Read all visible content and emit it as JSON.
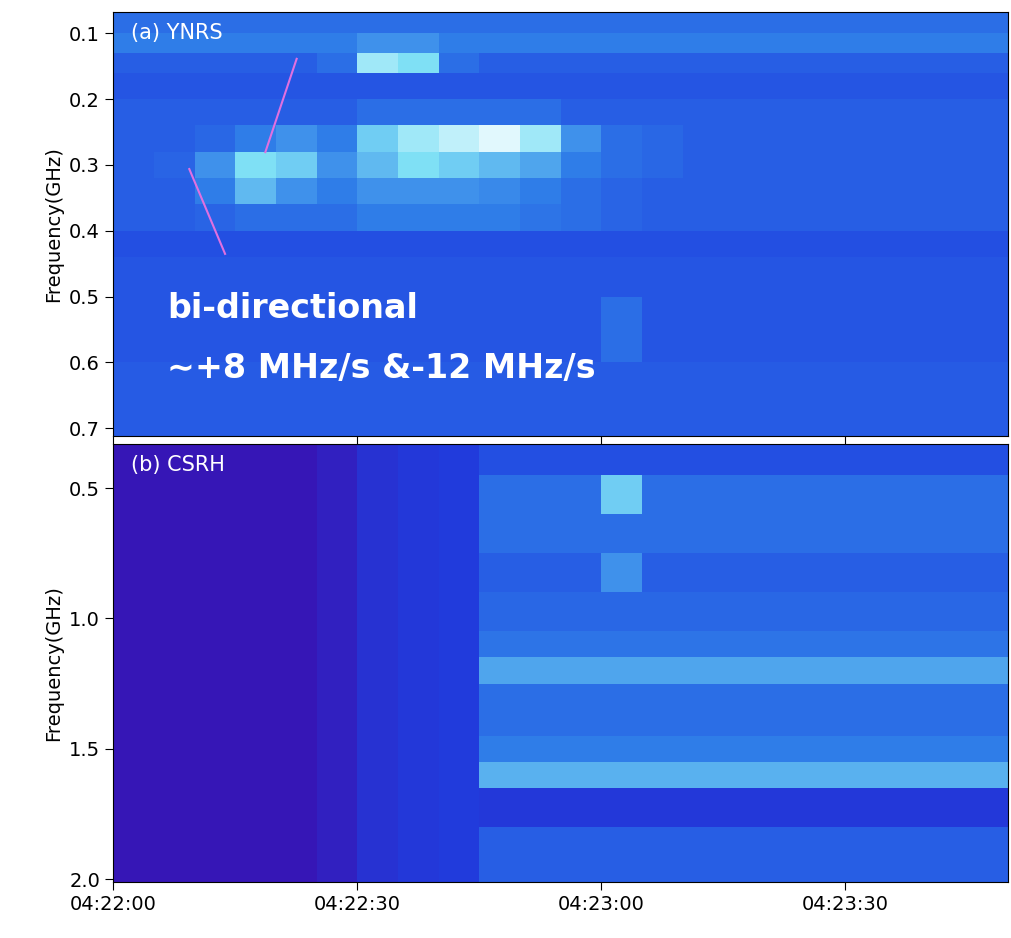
{
  "chart_data": [
    {
      "type": "heatmap",
      "label": "(a) YNRS",
      "ylabel": "Frequency(GHz)",
      "xlim": [
        0,
        110
      ],
      "ylim": [
        0.712,
        0.068
      ],
      "xticks": [
        {
          "value": 0,
          "label": "04:22:00"
        },
        {
          "value": 30,
          "label": "04:22:30"
        },
        {
          "value": 60,
          "label": "04:23:00"
        },
        {
          "value": 90,
          "label": "04:23:30"
        }
      ],
      "yticks": [
        0.1,
        0.2,
        0.3,
        0.4,
        0.5,
        0.6,
        0.7
      ],
      "tick_labels": "y",
      "annotations": [
        "bi-directional",
        "∼+8 MHz/s &-12 MHz/s"
      ],
      "x_edges": [
        0,
        5,
        10,
        15,
        20,
        25,
        30,
        35,
        40,
        45,
        50,
        55,
        60,
        65,
        70,
        75,
        80,
        85,
        90,
        95,
        100,
        105,
        110
      ],
      "y_edges": [
        0.068,
        0.1,
        0.13,
        0.16,
        0.2,
        0.24,
        0.28,
        0.32,
        0.36,
        0.4,
        0.44,
        0.5,
        0.6,
        0.712
      ],
      "clim": [
        0,
        1
      ],
      "cells": [
        [
          0.5,
          0.5,
          0.5,
          0.5,
          0.5,
          0.5,
          0.5,
          0.5,
          0.5,
          0.5,
          0.5,
          0.5,
          0.5,
          0.5,
          0.5,
          0.5,
          0.5,
          0.5,
          0.5,
          0.5,
          0.5,
          0.5
        ],
        [
          0.55,
          0.55,
          0.55,
          0.55,
          0.55,
          0.55,
          0.6,
          0.6,
          0.55,
          0.55,
          0.55,
          0.55,
          0.55,
          0.55,
          0.55,
          0.55,
          0.55,
          0.55,
          0.55,
          0.55,
          0.55,
          0.55
        ],
        [
          0.45,
          0.45,
          0.45,
          0.45,
          0.45,
          0.5,
          0.85,
          0.8,
          0.5,
          0.45,
          0.45,
          0.45,
          0.45,
          0.45,
          0.45,
          0.45,
          0.45,
          0.45,
          0.45,
          0.45,
          0.45,
          0.45
        ],
        [
          0.42,
          0.42,
          0.42,
          0.42,
          0.42,
          0.42,
          0.42,
          0.42,
          0.42,
          0.42,
          0.42,
          0.42,
          0.42,
          0.42,
          0.42,
          0.42,
          0.42,
          0.42,
          0.42,
          0.42,
          0.42,
          0.42
        ],
        [
          0.45,
          0.45,
          0.45,
          0.45,
          0.45,
          0.45,
          0.5,
          0.5,
          0.5,
          0.5,
          0.5,
          0.45,
          0.45,
          0.45,
          0.45,
          0.45,
          0.45,
          0.45,
          0.45,
          0.45,
          0.45,
          0.45
        ],
        [
          0.45,
          0.45,
          0.48,
          0.55,
          0.6,
          0.55,
          0.75,
          0.85,
          0.9,
          0.95,
          0.85,
          0.6,
          0.5,
          0.48,
          0.45,
          0.45,
          0.45,
          0.45,
          0.45,
          0.45,
          0.45,
          0.45
        ],
        [
          0.45,
          0.47,
          0.6,
          0.8,
          0.75,
          0.6,
          0.7,
          0.8,
          0.75,
          0.7,
          0.65,
          0.55,
          0.5,
          0.48,
          0.45,
          0.45,
          0.45,
          0.45,
          0.45,
          0.45,
          0.45,
          0.45
        ],
        [
          0.45,
          0.45,
          0.55,
          0.7,
          0.6,
          0.55,
          0.6,
          0.6,
          0.6,
          0.58,
          0.55,
          0.5,
          0.47,
          0.45,
          0.45,
          0.45,
          0.45,
          0.45,
          0.45,
          0.45,
          0.45,
          0.45
        ],
        [
          0.45,
          0.45,
          0.47,
          0.5,
          0.5,
          0.5,
          0.55,
          0.55,
          0.55,
          0.55,
          0.52,
          0.5,
          0.47,
          0.45,
          0.45,
          0.45,
          0.45,
          0.45,
          0.45,
          0.45,
          0.45,
          0.45
        ],
        [
          0.4,
          0.4,
          0.4,
          0.4,
          0.4,
          0.4,
          0.4,
          0.4,
          0.4,
          0.4,
          0.4,
          0.4,
          0.4,
          0.4,
          0.4,
          0.4,
          0.4,
          0.4,
          0.4,
          0.4,
          0.4,
          0.4
        ],
        [
          0.42,
          0.42,
          0.42,
          0.42,
          0.42,
          0.42,
          0.42,
          0.42,
          0.42,
          0.42,
          0.42,
          0.42,
          0.42,
          0.42,
          0.42,
          0.42,
          0.42,
          0.42,
          0.42,
          0.42,
          0.42,
          0.42
        ],
        [
          0.42,
          0.42,
          0.42,
          0.42,
          0.42,
          0.42,
          0.42,
          0.42,
          0.42,
          0.42,
          0.42,
          0.42,
          0.5,
          0.42,
          0.42,
          0.42,
          0.42,
          0.42,
          0.42,
          0.42,
          0.42,
          0.42
        ],
        [
          0.44,
          0.44,
          0.44,
          0.44,
          0.44,
          0.44,
          0.44,
          0.44,
          0.44,
          0.44,
          0.44,
          0.44,
          0.44,
          0.44,
          0.44,
          0.44,
          0.44,
          0.44,
          0.44,
          0.44,
          0.44,
          0.44
        ]
      ]
    },
    {
      "type": "heatmap",
      "label": "(b) CSRH",
      "ylabel": "Frequency(GHz)",
      "xlim": [
        0,
        110
      ],
      "ylim": [
        2.01,
        0.33
      ],
      "xticks": [
        {
          "value": 0,
          "label": "04:22:00"
        },
        {
          "value": 30,
          "label": "04:22:30"
        },
        {
          "value": 60,
          "label": "04:23:00"
        },
        {
          "value": 90,
          "label": "04:23:30"
        }
      ],
      "yticks": [
        0.5,
        {
          "value": 1.0,
          "label": "1.0"
        },
        1.5,
        {
          "value": 2.0,
          "label": "2.0"
        }
      ],
      "x_edges": [
        0,
        5,
        10,
        15,
        20,
        25,
        30,
        35,
        40,
        45,
        50,
        55,
        60,
        65,
        70,
        75,
        80,
        85,
        90,
        95,
        100,
        105,
        110
      ],
      "y_edges": [
        0.33,
        0.45,
        0.6,
        0.75,
        0.9,
        1.05,
        1.15,
        1.25,
        1.45,
        1.55,
        1.65,
        1.8,
        1.9,
        2.01
      ],
      "clim": [
        0,
        1
      ],
      "cells": [
        [
          0.05,
          0.05,
          0.05,
          0.05,
          0.05,
          0.12,
          0.25,
          0.3,
          0.32,
          0.4,
          0.4,
          0.4,
          0.4,
          0.4,
          0.4,
          0.4,
          0.4,
          0.4,
          0.4,
          0.4,
          0.4,
          0.4
        ],
        [
          0.05,
          0.05,
          0.05,
          0.05,
          0.05,
          0.12,
          0.25,
          0.3,
          0.32,
          0.5,
          0.5,
          0.5,
          0.75,
          0.5,
          0.5,
          0.5,
          0.5,
          0.5,
          0.5,
          0.5,
          0.5,
          0.5
        ],
        [
          0.05,
          0.05,
          0.05,
          0.05,
          0.05,
          0.12,
          0.25,
          0.3,
          0.32,
          0.5,
          0.5,
          0.5,
          0.5,
          0.5,
          0.5,
          0.5,
          0.5,
          0.5,
          0.5,
          0.5,
          0.5,
          0.5
        ],
        [
          0.05,
          0.05,
          0.05,
          0.05,
          0.05,
          0.12,
          0.25,
          0.3,
          0.32,
          0.45,
          0.45,
          0.45,
          0.6,
          0.45,
          0.45,
          0.45,
          0.45,
          0.45,
          0.45,
          0.45,
          0.45,
          0.45
        ],
        [
          0.05,
          0.05,
          0.05,
          0.05,
          0.05,
          0.12,
          0.25,
          0.3,
          0.32,
          0.48,
          0.48,
          0.48,
          0.48,
          0.48,
          0.48,
          0.48,
          0.48,
          0.48,
          0.48,
          0.48,
          0.48,
          0.48
        ],
        [
          0.05,
          0.05,
          0.05,
          0.05,
          0.05,
          0.12,
          0.25,
          0.3,
          0.32,
          0.52,
          0.52,
          0.52,
          0.52,
          0.52,
          0.52,
          0.52,
          0.52,
          0.52,
          0.52,
          0.52,
          0.52,
          0.52
        ],
        [
          0.05,
          0.05,
          0.05,
          0.05,
          0.05,
          0.12,
          0.25,
          0.3,
          0.32,
          0.65,
          0.65,
          0.65,
          0.65,
          0.65,
          0.65,
          0.65,
          0.65,
          0.65,
          0.65,
          0.65,
          0.65,
          0.65
        ],
        [
          0.05,
          0.05,
          0.05,
          0.05,
          0.05,
          0.12,
          0.25,
          0.3,
          0.32,
          0.5,
          0.5,
          0.5,
          0.5,
          0.5,
          0.5,
          0.5,
          0.5,
          0.5,
          0.5,
          0.5,
          0.5,
          0.5
        ],
        [
          0.05,
          0.05,
          0.05,
          0.05,
          0.05,
          0.12,
          0.25,
          0.3,
          0.32,
          0.55,
          0.55,
          0.55,
          0.55,
          0.55,
          0.55,
          0.55,
          0.55,
          0.55,
          0.55,
          0.55,
          0.55,
          0.55
        ],
        [
          0.05,
          0.05,
          0.05,
          0.05,
          0.05,
          0.12,
          0.25,
          0.3,
          0.32,
          0.68,
          0.68,
          0.68,
          0.68,
          0.68,
          0.68,
          0.68,
          0.68,
          0.68,
          0.68,
          0.68,
          0.68,
          0.68
        ],
        [
          0.05,
          0.05,
          0.05,
          0.05,
          0.05,
          0.12,
          0.25,
          0.3,
          0.32,
          0.3,
          0.3,
          0.3,
          0.3,
          0.3,
          0.3,
          0.3,
          0.3,
          0.3,
          0.3,
          0.3,
          0.3,
          0.3
        ],
        [
          0.05,
          0.05,
          0.05,
          0.05,
          0.05,
          0.12,
          0.25,
          0.3,
          0.32,
          0.45,
          0.45,
          0.45,
          0.45,
          0.45,
          0.45,
          0.45,
          0.45,
          0.45,
          0.45,
          0.45,
          0.45,
          0.45
        ],
        [
          0.05,
          0.05,
          0.05,
          0.05,
          0.05,
          0.12,
          0.25,
          0.3,
          0.32,
          0.45,
          0.45,
          0.45,
          0.45,
          0.45,
          0.45,
          0.45,
          0.45,
          0.45,
          0.45,
          0.45,
          0.45,
          0.45
        ]
      ]
    }
  ]
}
